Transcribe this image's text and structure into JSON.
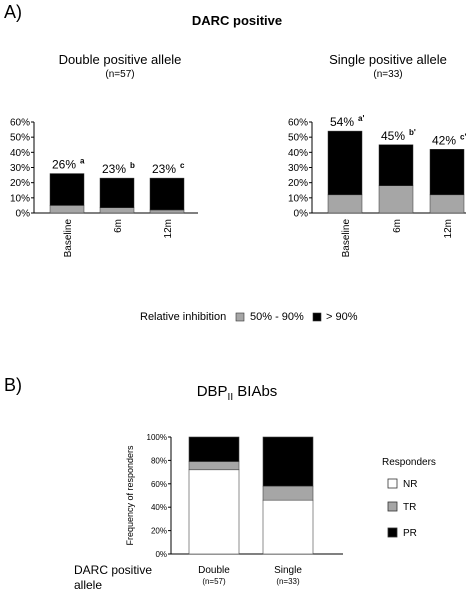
{
  "panel_a": {
    "label": "A)",
    "title": "DARC positive",
    "legend": {
      "title": "Relative inhibition",
      "items": [
        {
          "label": "50% - 90%",
          "color": "#a6a6a6"
        },
        {
          "label": "> 90%",
          "color": "#000000"
        }
      ]
    },
    "left": {
      "title": "Double positive allele",
      "subtitle": "(n=57)"
    },
    "right": {
      "title": "Single positive allele",
      "subtitle": "(n=33)"
    }
  },
  "panel_b": {
    "label": "B)",
    "title_main": "DBP",
    "title_sub": "II",
    "title_rest": " BIAbs",
    "ylabel": "Frequency of responders",
    "row_label_line1": "DARC positive",
    "row_label_line2": "allele",
    "legend_title": "Responders",
    "categories": [
      {
        "name": "Double",
        "n": "(n=57)"
      },
      {
        "name": "Single",
        "n": "(n=33)"
      }
    ]
  },
  "chart_data": [
    {
      "type": "bar",
      "stacked": true,
      "title": "Double positive allele",
      "categories": [
        "Baseline",
        "6m",
        "12m"
      ],
      "series": [
        {
          "name": "50% - 90%",
          "color": "#a6a6a6",
          "values": [
            5,
            3.5,
            2
          ]
        },
        {
          "name": "> 90%",
          "color": "#000000",
          "values": [
            21,
            19.5,
            21
          ]
        }
      ],
      "data_labels": [
        "26%",
        "23%",
        "23%"
      ],
      "label_superscripts": [
        "a",
        "b",
        "c"
      ],
      "ylim": [
        0,
        60
      ],
      "yticks": [
        "0%",
        "10%",
        "20%",
        "30%",
        "40%",
        "50%",
        "60%"
      ]
    },
    {
      "type": "bar",
      "stacked": true,
      "title": "Single positive allele",
      "categories": [
        "Baseline",
        "6m",
        "12m"
      ],
      "series": [
        {
          "name": "50% - 90%",
          "color": "#a6a6a6",
          "values": [
            12,
            18,
            12
          ]
        },
        {
          "name": "> 90%",
          "color": "#000000",
          "values": [
            42,
            27,
            30
          ]
        }
      ],
      "data_labels": [
        "54%",
        "45%",
        "42%"
      ],
      "label_superscripts": [
        "a'",
        "b'",
        "c'"
      ],
      "ylim": [
        0,
        60
      ],
      "yticks": [
        "0%",
        "10%",
        "20%",
        "30%",
        "40%",
        "50%",
        "60%"
      ]
    },
    {
      "type": "bar",
      "stacked": true,
      "percent": true,
      "title": "DBPII BIAbs",
      "ylabel": "Frequency of responders",
      "categories": [
        "Double",
        "Single"
      ],
      "series": [
        {
          "name": "NR",
          "color": "#ffffff",
          "values": [
            72,
            46
          ]
        },
        {
          "name": "TR",
          "color": "#a6a6a6",
          "values": [
            7,
            12
          ]
        },
        {
          "name": "PR",
          "color": "#000000",
          "values": [
            21,
            42
          ]
        }
      ],
      "ylim": [
        0,
        100
      ],
      "yticks": [
        "0%",
        "20%",
        "40%",
        "60%",
        "80%",
        "100%"
      ]
    }
  ]
}
